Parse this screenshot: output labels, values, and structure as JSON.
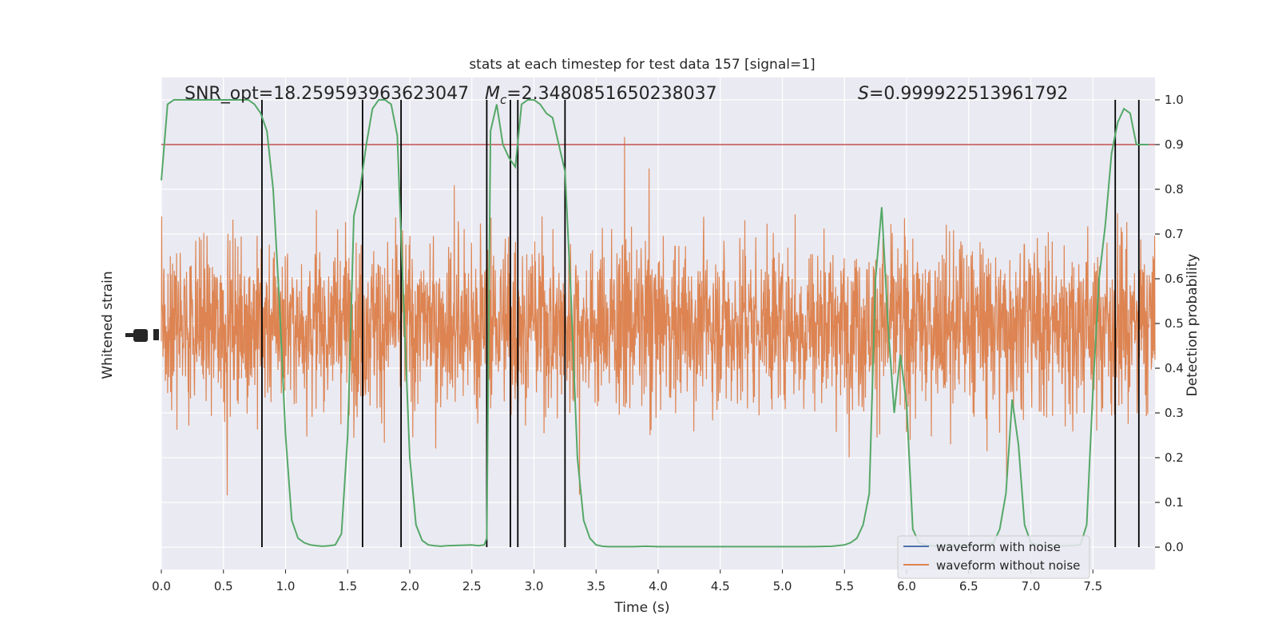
{
  "chart_data": {
    "type": "line",
    "title": "stats at each timestep for test data 157 [signal=1]",
    "xlabel": "Time (s)",
    "ylabel_left": "Whitened strain",
    "ylabel_right": "Detection probability",
    "xlim": [
      0.0,
      8.0
    ],
    "ylim_right": [
      -0.05,
      1.05
    ],
    "x_ticks": [
      "0.0",
      "0.5",
      "1.0",
      "1.5",
      "2.0",
      "2.5",
      "3.0",
      "3.5",
      "4.0",
      "4.5",
      "5.0",
      "5.5",
      "6.0",
      "6.5",
      "7.0",
      "7.5"
    ],
    "x_tick_values": [
      0.0,
      0.5,
      1.0,
      1.5,
      2.0,
      2.5,
      3.0,
      3.5,
      4.0,
      4.5,
      5.0,
      5.5,
      6.0,
      6.5,
      7.0,
      7.5
    ],
    "y_ticks_right": [
      "0.0",
      "0.1",
      "0.2",
      "0.3",
      "0.4",
      "0.5",
      "0.6",
      "0.7",
      "0.8",
      "0.9",
      "1.0"
    ],
    "y_tick_values_right": [
      0.0,
      0.1,
      0.2,
      0.3,
      0.4,
      0.5,
      0.6,
      0.7,
      0.8,
      0.9,
      1.0
    ],
    "grid": true,
    "legend_position": "lower-right",
    "annotations": {
      "snr_label": "SNR_opt=18.259593963623047",
      "mc_prefix": "M",
      "mc_sub": "c",
      "mc_value": "=2.3480851650238037",
      "s_prefix": "S",
      "s_value": "=0.999922513961792"
    },
    "threshold": 0.9,
    "vertical_lines": [
      0.81,
      1.62,
      1.93,
      2.62,
      2.81,
      2.87,
      3.25,
      7.68,
      7.87
    ],
    "series": [
      {
        "name": "waveform with noise",
        "color": "#4c72b0",
        "note_hidden": true
      },
      {
        "name": "waveform without noise",
        "color": "#dd8452",
        "samples": 8192
      },
      {
        "name_role": "detection probability",
        "color": "#55a868",
        "x": [
          0.0,
          0.05,
          0.1,
          0.15,
          0.2,
          0.3,
          0.4,
          0.5,
          0.6,
          0.7,
          0.75,
          0.8,
          0.85,
          0.9,
          0.95,
          1.0,
          1.05,
          1.1,
          1.15,
          1.2,
          1.25,
          1.3,
          1.35,
          1.4,
          1.45,
          1.5,
          1.55,
          1.6,
          1.65,
          1.7,
          1.75,
          1.8,
          1.85,
          1.9,
          1.95,
          2.0,
          2.05,
          2.1,
          2.15,
          2.2,
          2.25,
          2.3,
          2.4,
          2.5,
          2.55,
          2.6,
          2.62,
          2.65,
          2.7,
          2.75,
          2.8,
          2.85,
          2.9,
          2.95,
          3.0,
          3.05,
          3.1,
          3.15,
          3.2,
          3.25,
          3.3,
          3.35,
          3.4,
          3.45,
          3.5,
          3.55,
          3.6,
          3.7,
          3.8,
          3.9,
          4.0,
          4.2,
          4.4,
          4.6,
          4.8,
          5.0,
          5.2,
          5.4,
          5.5,
          5.55,
          5.6,
          5.65,
          5.7,
          5.75,
          5.8,
          5.85,
          5.9,
          5.95,
          6.0,
          6.05,
          6.1,
          6.15,
          6.2,
          6.3,
          6.4,
          6.5,
          6.6,
          6.7,
          6.75,
          6.8,
          6.85,
          6.9,
          6.95,
          7.0,
          7.05,
          7.1,
          7.2,
          7.3,
          7.4,
          7.45,
          7.5,
          7.55,
          7.6,
          7.65,
          7.7,
          7.75,
          7.8,
          7.85,
          7.9,
          7.95
        ],
        "y": [
          0.82,
          0.99,
          1.0,
          1.0,
          1.0,
          1.0,
          1.0,
          1.0,
          1.0,
          1.0,
          0.99,
          0.97,
          0.93,
          0.8,
          0.55,
          0.25,
          0.06,
          0.02,
          0.01,
          0.005,
          0.003,
          0.002,
          0.003,
          0.005,
          0.03,
          0.25,
          0.74,
          0.8,
          0.9,
          0.98,
          1.0,
          1.0,
          0.99,
          0.92,
          0.55,
          0.2,
          0.05,
          0.015,
          0.005,
          0.003,
          0.002,
          0.003,
          0.004,
          0.005,
          0.003,
          0.005,
          0.02,
          0.93,
          0.99,
          0.9,
          0.87,
          0.85,
          0.99,
          1.0,
          1.0,
          0.99,
          0.97,
          0.96,
          0.9,
          0.84,
          0.55,
          0.2,
          0.06,
          0.02,
          0.005,
          0.002,
          0.001,
          0.001,
          0.001,
          0.002,
          0.001,
          0.001,
          0.001,
          0.001,
          0.001,
          0.001,
          0.001,
          0.002,
          0.005,
          0.01,
          0.02,
          0.05,
          0.12,
          0.6,
          0.76,
          0.5,
          0.3,
          0.43,
          0.32,
          0.04,
          0.01,
          0.005,
          0.003,
          0.002,
          0.002,
          0.002,
          0.003,
          0.01,
          0.04,
          0.12,
          0.33,
          0.23,
          0.05,
          0.01,
          0.005,
          0.003,
          0.002,
          0.003,
          0.005,
          0.05,
          0.35,
          0.6,
          0.72,
          0.88,
          0.95,
          0.98,
          0.97,
          0.9,
          0.9,
          0.9
        ]
      }
    ]
  }
}
